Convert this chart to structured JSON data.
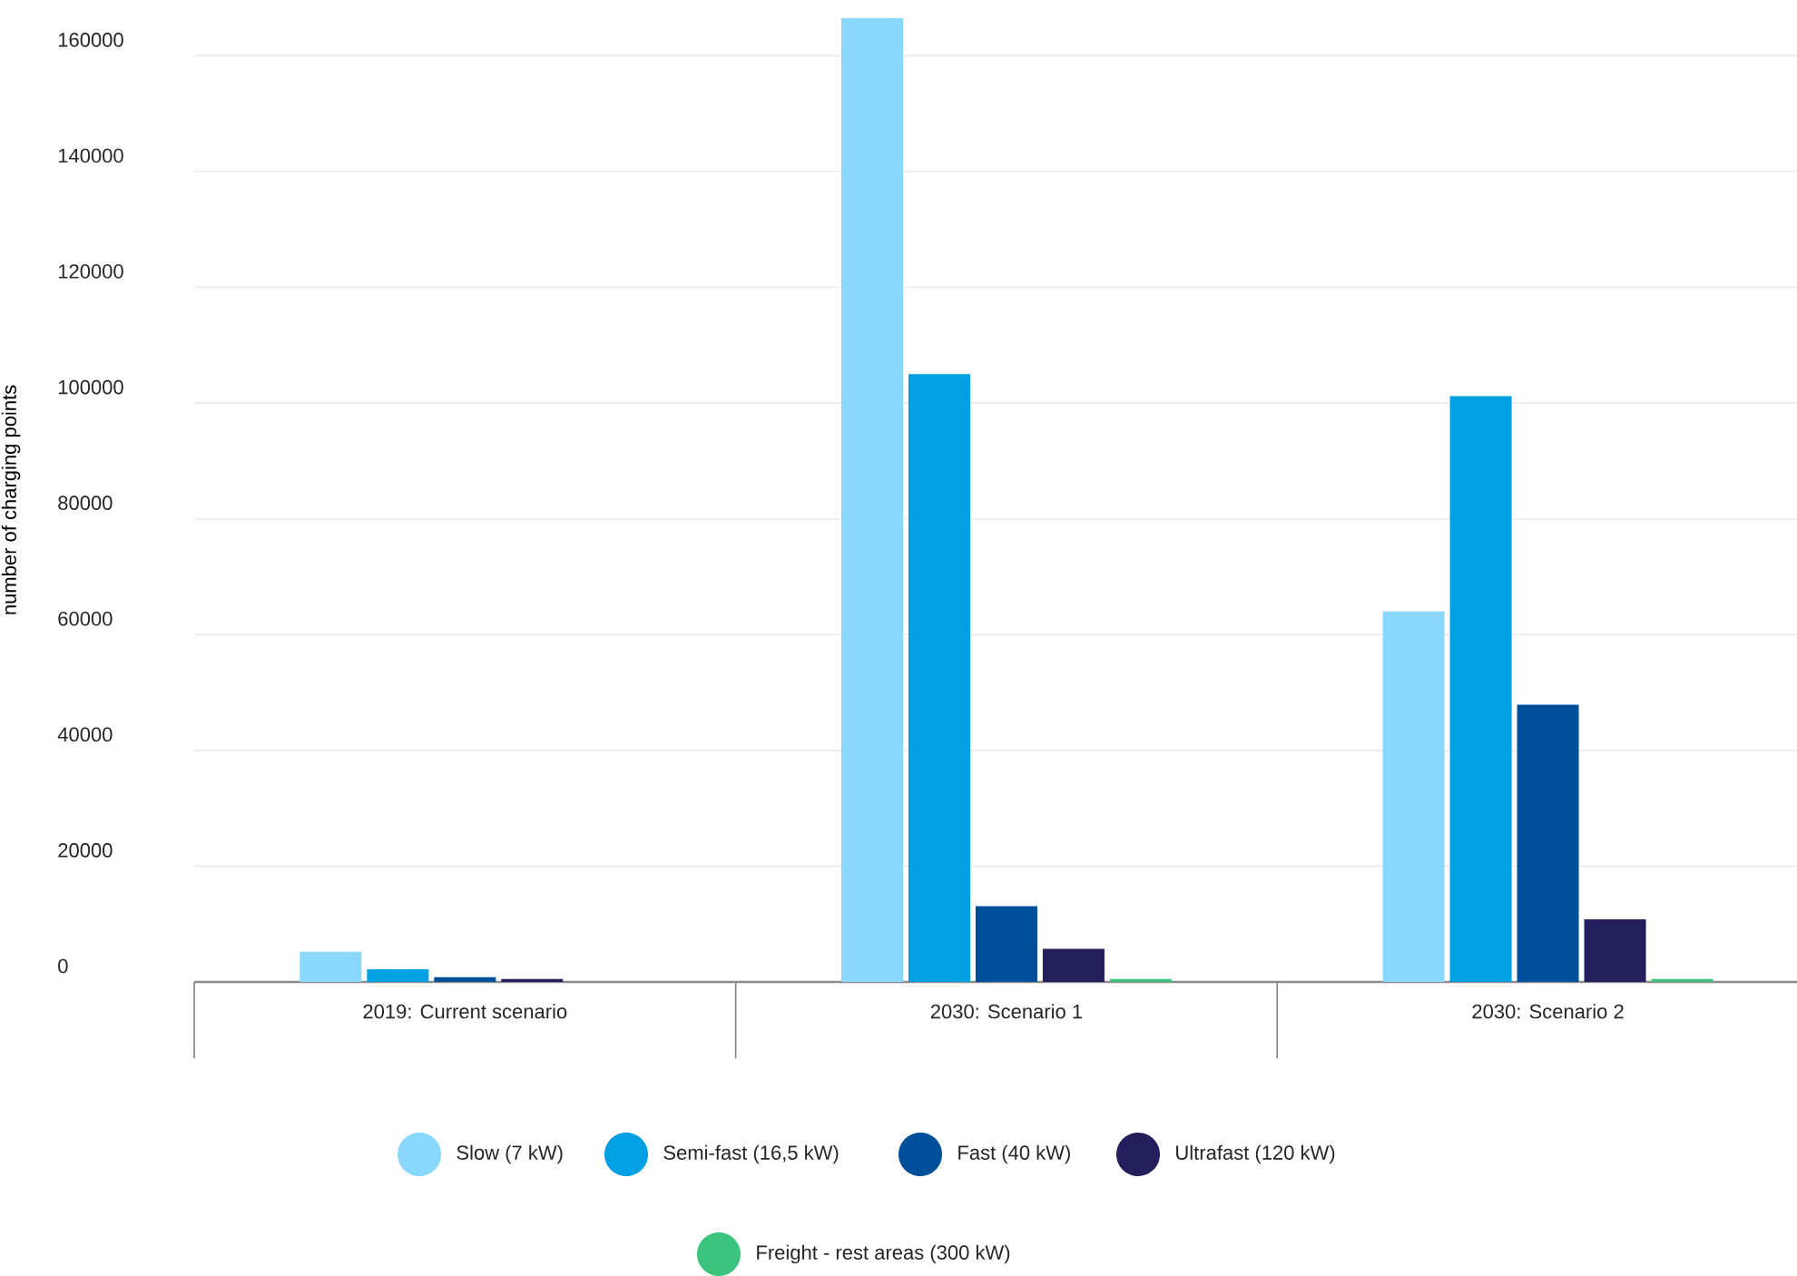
{
  "chart_data": {
    "type": "bar",
    "ylabel": "number of charging points",
    "categories": [
      "2019: Current scenario",
      "2030: Scenario 1",
      "2030: Scenario 2"
    ],
    "series": [
      {
        "name": "Slow (7 kW)",
        "color": "#8ad8fd",
        "values": [
          5200,
          166500,
          64000
        ]
      },
      {
        "name": "Semi-fast (16,5 kW)",
        "color": "#00a0e2",
        "values": [
          2200,
          105000,
          101200
        ]
      },
      {
        "name": "Fast (40 kW)",
        "color": "#004f9a",
        "values": [
          800,
          13100,
          47900
        ]
      },
      {
        "name": "Ultrafast (120 kW)",
        "color": "#231f5c",
        "values": [
          500,
          5700,
          10800
        ]
      },
      {
        "name": "Freight - rest areas (300 kW)",
        "color": "#3cc37e",
        "values": [
          0,
          500,
          500
        ]
      }
    ],
    "ylim": [
      0,
      166500
    ],
    "yticks": [
      0,
      20000,
      40000,
      60000,
      80000,
      100000,
      120000,
      140000,
      160000
    ],
    "grid": "y",
    "legend": "bottom"
  }
}
